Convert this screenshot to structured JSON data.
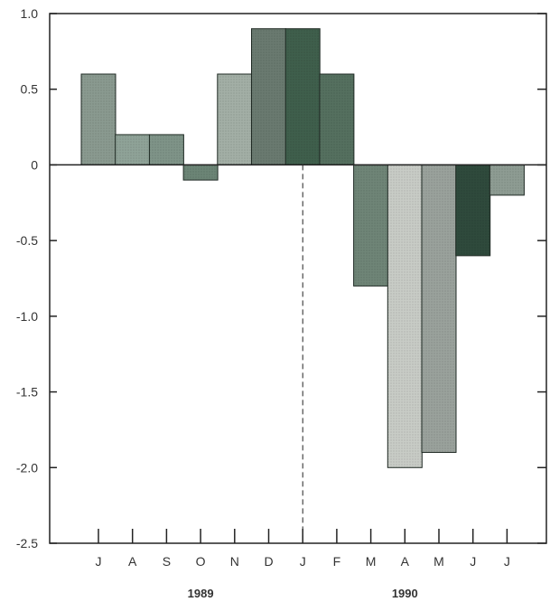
{
  "chart_data": {
    "type": "bar",
    "title": "",
    "xlabel": "",
    "ylabel": "",
    "ylim": [
      -2.5,
      1.0
    ],
    "yticks": [
      {
        "value": 1.0,
        "label": "1.0"
      },
      {
        "value": 0.5,
        "label": "0.5"
      },
      {
        "value": 0,
        "label": "0"
      },
      {
        "value": -0.5,
        "label": "-0.5"
      },
      {
        "value": -1.0,
        "label": "-1.0"
      },
      {
        "value": -1.5,
        "label": "-1.5"
      },
      {
        "value": -2.0,
        "label": "-2.0"
      },
      {
        "value": -2.5,
        "label": "-2.5"
      }
    ],
    "categories": [
      "J",
      "A",
      "S",
      "O",
      "N",
      "D",
      "J",
      "F",
      "M",
      "A",
      "M",
      "J",
      "J"
    ],
    "values": [
      0.6,
      0.2,
      0.2,
      -0.1,
      0.6,
      0.9,
      0.9,
      0.6,
      -0.8,
      -2.0,
      -1.9,
      -0.6,
      -0.2
    ],
    "year_labels": [
      {
        "label": "1989",
        "under_category_index": 3
      },
      {
        "label": "1990",
        "under_category_index": 9
      }
    ],
    "divider_before_category_index": 6,
    "grid": false,
    "colors": {
      "bars": [
        "#8a9a90",
        "#8fa398",
        "#7f9488",
        "#6c8576",
        "#a3afa6",
        "#6a7a70",
        "#3f5f4c",
        "#55705f",
        "#6f8577",
        "#c8ccc6",
        "#9aa29c",
        "#2f4a3c",
        "#8e9c93"
      ],
      "axis": "#222222",
      "text": "#333333"
    }
  }
}
